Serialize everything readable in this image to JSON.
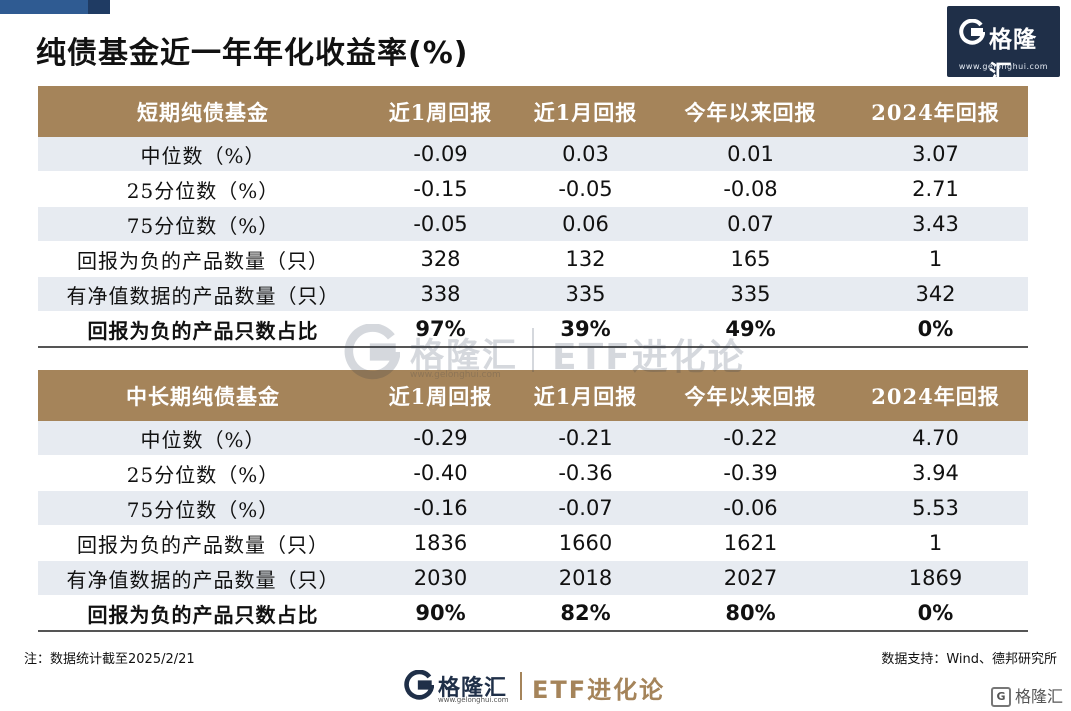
{
  "title": "纯债基金近一年年化收益率(%)",
  "brand": {
    "name": "格隆汇",
    "url": "www.gelonghui.com",
    "etf_label": "ETF进化论",
    "accent_color": "#a5845a",
    "navy_color": "#1f2f48"
  },
  "headers": [
    "近1周回报",
    "近1月回报",
    "今年以来回报",
    "2024年回报"
  ],
  "tables": [
    {
      "title": "短期纯债基金",
      "rows": [
        {
          "label": "中位数（%）",
          "values": [
            "-0.09",
            "0.03",
            "0.01",
            "3.07"
          ]
        },
        {
          "label": "25分位数（%）",
          "values": [
            "-0.15",
            "-0.05",
            "-0.08",
            "2.71"
          ]
        },
        {
          "label": "75分位数（%）",
          "values": [
            "-0.05",
            "0.06",
            "0.07",
            "3.43"
          ]
        },
        {
          "label": "回报为负的产品数量（只）",
          "values": [
            "328",
            "132",
            "165",
            "1"
          ]
        },
        {
          "label": "有净值数据的产品数量（只）",
          "values": [
            "338",
            "335",
            "335",
            "342"
          ]
        },
        {
          "label": "回报为负的产品只数占比",
          "values": [
            "97%",
            "39%",
            "49%",
            "0%"
          ]
        }
      ]
    },
    {
      "title": "中长期纯债基金",
      "rows": [
        {
          "label": "中位数（%）",
          "values": [
            "-0.29",
            "-0.21",
            "-0.22",
            "4.70"
          ]
        },
        {
          "label": "25分位数（%）",
          "values": [
            "-0.40",
            "-0.36",
            "-0.39",
            "3.94"
          ]
        },
        {
          "label": "75分位数（%）",
          "values": [
            "-0.16",
            "-0.07",
            "-0.06",
            "5.53"
          ]
        },
        {
          "label": "回报为负的产品数量（只）",
          "values": [
            "1836",
            "1660",
            "1621",
            "1"
          ]
        },
        {
          "label": "有净值数据的产品数量（只）",
          "values": [
            "2030",
            "2018",
            "2027",
            "1869"
          ]
        },
        {
          "label": "回报为负的产品只数占比",
          "values": [
            "90%",
            "82%",
            "80%",
            "0%"
          ]
        }
      ]
    }
  ],
  "note": "注：数据统计截至2025/2/21",
  "source": "数据支持：Wind、德邦研究所"
}
